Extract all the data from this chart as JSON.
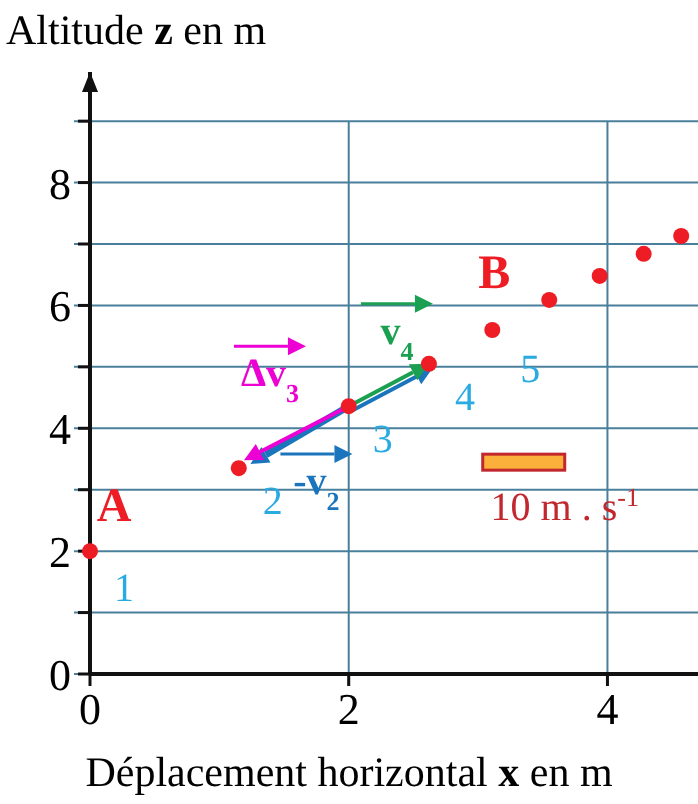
{
  "chart_data": {
    "type": "scatter",
    "xlabel": "Déplacement horizontal **x** en m",
    "ylabel": "Altitude **z** en m",
    "x": [
      0,
      1.15,
      2.0,
      2.62,
      3.11,
      3.55,
      3.94,
      4.28,
      4.57
    ],
    "series": [
      {
        "color": "#ee1c24",
        "values": [
          2.0,
          3.35,
          4.36,
          5.05,
          5.6,
          6.09,
          6.48,
          6.84,
          7.13
        ]
      }
    ],
    "marker": "circle",
    "grid": true,
    "xlim": [
      0,
      4.7
    ],
    "xticks": [
      0,
      2,
      4
    ],
    "ylim": [
      0,
      9.8
    ],
    "yticks": [
      0,
      {
        "value": 1,
        "label": null
      },
      2,
      {
        "value": 3,
        "label": null
      },
      4,
      {
        "value": 5,
        "label": null
      },
      6,
      {
        "value": 7,
        "label": null
      },
      8,
      {
        "value": 9,
        "label": null
      }
    ],
    "annotations": [
      "A",
      "B",
      "1",
      "2",
      "3",
      "4",
      "5",
      {
        "text": "Δv$_{3}$",
        "x": 1.19,
        "y": 3.48
      },
      {
        "text": "-v$_{2}$",
        "x": 1.24,
        "y": 3.42
      },
      {
        "text": "v$_{4}$",
        "x": 2.62,
        "y": 5.05
      },
      "10 m . s$^{-1}$"
    ]
  }
}
